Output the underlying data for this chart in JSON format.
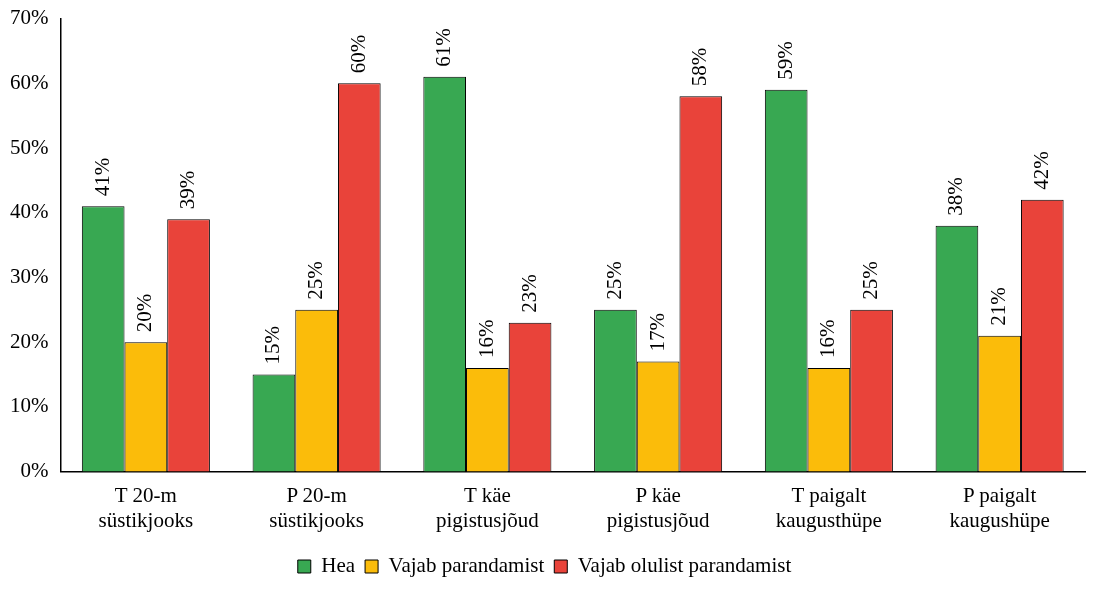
{
  "chart_data": {
    "type": "bar",
    "categories": [
      "T 20-m süstikjooks",
      "P 20-m süstikjooks",
      "T käe pigistusjõud",
      "P käe pigistusjõud",
      "T paigalt kaugusthüpe",
      "P paigalt kaugushüpe"
    ],
    "series": [
      {
        "name": "Hea",
        "color": "#38a852",
        "values": [
          41,
          15,
          61,
          25,
          59,
          38
        ],
        "value_labels": [
          "41%",
          "15%",
          "61%",
          "25%",
          "59%",
          "38%"
        ]
      },
      {
        "name": "Vajab parandamist",
        "color": "#fbbc0a",
        "values": [
          20,
          25,
          16,
          17,
          16,
          21
        ],
        "value_labels": [
          "20%",
          "25%",
          "16%",
          "17%",
          "16%",
          "21%"
        ]
      },
      {
        "name": "Vajab olulist parandamist",
        "color": "#e9433a",
        "values": [
          39,
          60,
          23,
          58,
          25,
          42
        ],
        "value_labels": [
          "39%",
          "60%",
          "23%",
          "58%",
          "25%",
          "42%"
        ]
      }
    ],
    "ylim": [
      0,
      70
    ],
    "yticks": [
      {
        "value": 0,
        "label": "0%"
      },
      {
        "value": 10,
        "label": "10%"
      },
      {
        "value": 20,
        "label": "20%"
      },
      {
        "value": 30,
        "label": "30%"
      },
      {
        "value": 40,
        "label": "40%"
      },
      {
        "value": 50,
        "label": "50%"
      },
      {
        "value": 60,
        "label": "60%"
      },
      {
        "value": 70,
        "label": "70%"
      }
    ],
    "grid": false,
    "legend": "bottom"
  }
}
